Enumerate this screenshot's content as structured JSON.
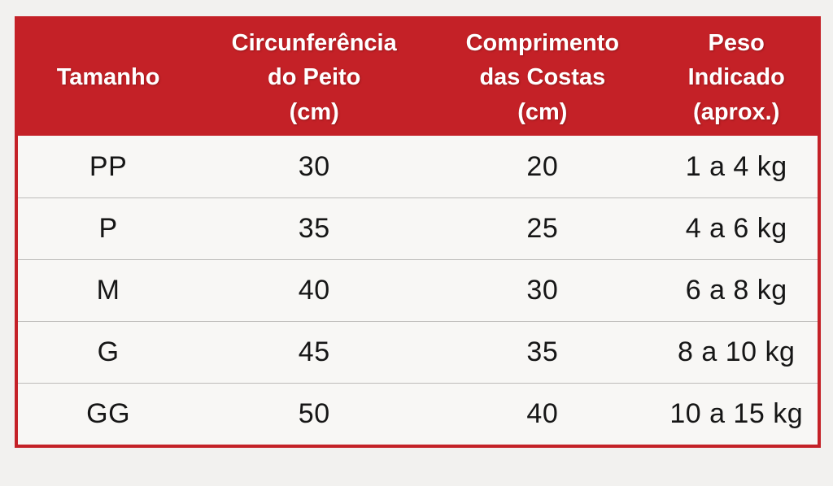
{
  "colors": {
    "header_bg": "#C42127",
    "header_text": "#FFFFFF",
    "table_border": "#C42127",
    "body_bg": "#F8F7F5",
    "page_bg": "#F2F1EF",
    "row_divider": "#BEBCBA",
    "body_text": "#161616"
  },
  "header": {
    "size": "Tamanho",
    "chest": "Circunferência\ndo Peito\n(cm)",
    "back": "Comprimento\ndas Costas\n(cm)",
    "weight": "Peso\nIndicado\n(aprox.)"
  },
  "rows": [
    {
      "size": "PP",
      "chest": "30",
      "back": "20",
      "weight": "1 a 4 kg"
    },
    {
      "size": "P",
      "chest": "35",
      "back": "25",
      "weight": "4 a 6 kg"
    },
    {
      "size": "M",
      "chest": "40",
      "back": "30",
      "weight": "6 a 8 kg"
    },
    {
      "size": "G",
      "chest": "45",
      "back": "35",
      "weight": "8 a 10 kg"
    },
    {
      "size": "GG",
      "chest": "50",
      "back": "40",
      "weight": "10 a 15 kg"
    }
  ],
  "chart_data": {
    "type": "table",
    "title": "",
    "columns": [
      "Tamanho",
      "Circunferência do Peito (cm)",
      "Comprimento das Costas (cm)",
      "Peso Indicado (aprox.)"
    ],
    "rows": [
      [
        "PP",
        30,
        20,
        "1 a 4 kg"
      ],
      [
        "P",
        35,
        25,
        "4 a 6 kg"
      ],
      [
        "M",
        40,
        30,
        "6 a 8 kg"
      ],
      [
        "G",
        45,
        35,
        "8 a 10 kg"
      ],
      [
        "GG",
        50,
        40,
        "10 a 15 kg"
      ]
    ]
  }
}
